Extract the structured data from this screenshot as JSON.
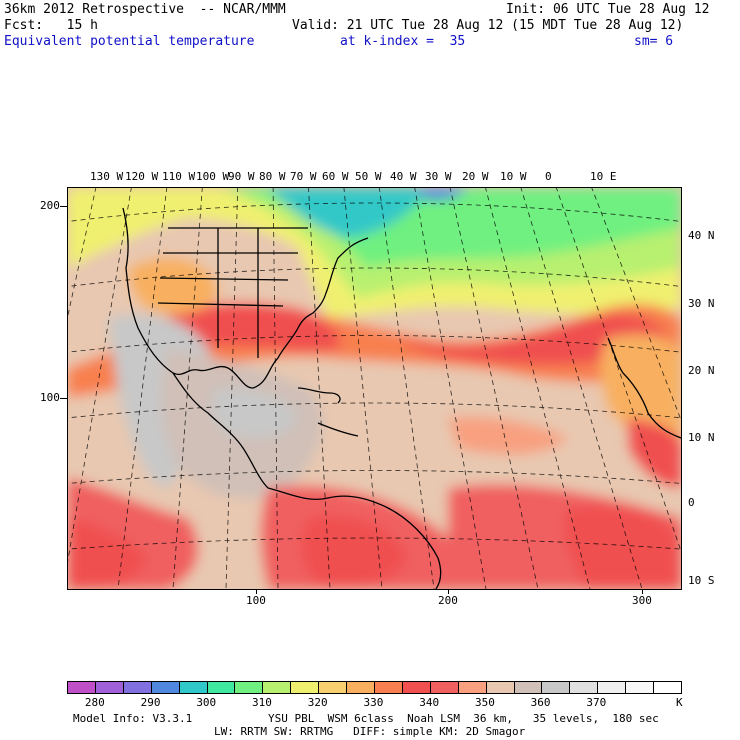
{
  "header": {
    "line1_left": "36km 2012 Retrospective  -- NCAR/MMM",
    "line1_right": "Init: 06 UTC Tue 28 Aug 12",
    "line2_left": "Fcst:   15 h",
    "line2_right": "Valid: 21 UTC Tue 28 Aug 12 (15 MDT Tue 28 Aug 12)",
    "line3_field": "Equivalent potential temperature",
    "line3_level": "at k-index =  35",
    "line3_smooth": "sm= 6"
  },
  "map": {
    "top_lon_labels": [
      "130 W",
      "120 W",
      "110 W",
      "100 W",
      "90 W",
      "80 W",
      "70 W",
      "60 W",
      "50 W",
      "40 W",
      "30 W",
      "20 W",
      "10 W",
      "0",
      "10 E"
    ],
    "right_lat_labels": [
      "40 N",
      "30 N",
      "20 N",
      "10 N",
      "0",
      "10 S"
    ],
    "left_grid_labels": [
      "200",
      "100"
    ],
    "bottom_grid_labels": [
      "100",
      "200",
      "300"
    ]
  },
  "colorbar": {
    "colors": [
      "#c050c8",
      "#a060d8",
      "#8070e0",
      "#5088e0",
      "#30c8c8",
      "#40e8a0",
      "#70f080",
      "#b8f070",
      "#f0f070",
      "#f8d070",
      "#f8b060",
      "#f88050",
      "#f05050",
      "#f06060",
      "#f8a080",
      "#e8c8b0",
      "#d0c0b8",
      "#c8c8c8",
      "#e0e0e0",
      "#f0f0f0",
      "#f8f8f8",
      "#ffffff"
    ],
    "tick_labels": [
      "280",
      "290",
      "300",
      "310",
      "320",
      "330",
      "340",
      "350",
      "360",
      "370"
    ],
    "unit": "K"
  },
  "footer": {
    "line1_left": "Model Info: V3.3.1",
    "line1_right": "YSU PBL  WSM 6class  Noah LSM  36 km,   35 levels,  180 sec",
    "line2": "LW: RRTM SW: RRTMG   DIFF: simple KM: 2D Smagor"
  }
}
